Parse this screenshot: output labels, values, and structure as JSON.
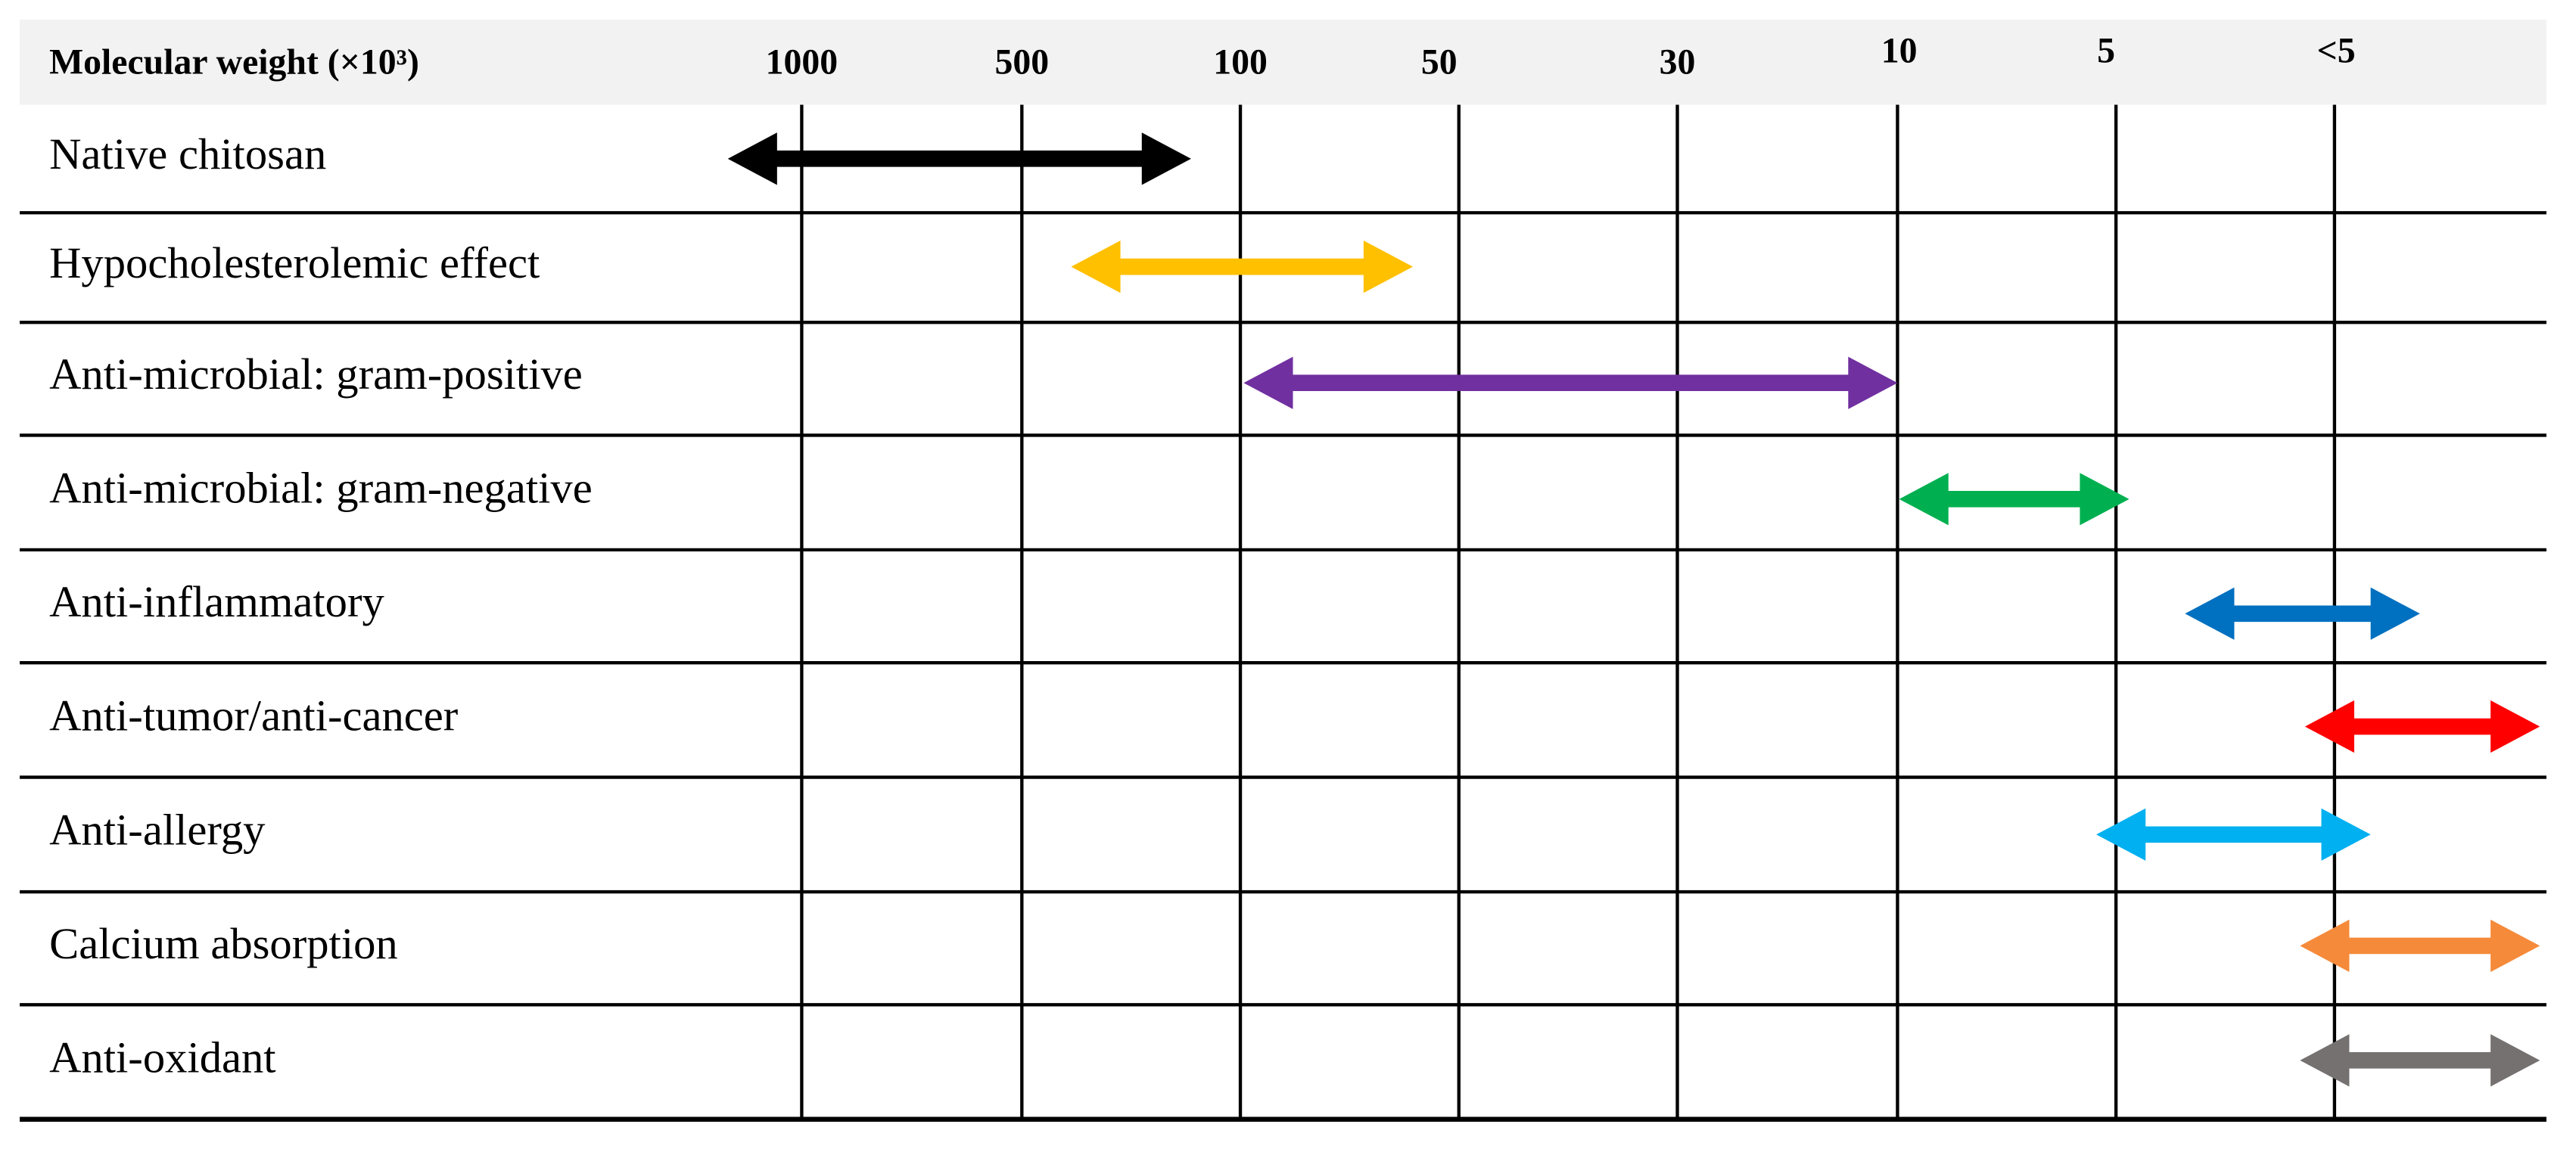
{
  "header": {
    "title": "Molecular weight (×10³)",
    "columns": [
      "1000",
      "500",
      "100",
      "50",
      "30",
      "10",
      "5",
      "<5"
    ]
  },
  "rows": [
    "Native chitosan",
    "Hypocholesterolemic effect",
    "Anti-microbial: gram-positive",
    "Anti-microbial: gram-negative",
    "Anti-inflammatory",
    "Anti-tumor/anti-cancer",
    "Anti-allergy",
    "Calcium absorption",
    "Anti-oxidant"
  ]
}
